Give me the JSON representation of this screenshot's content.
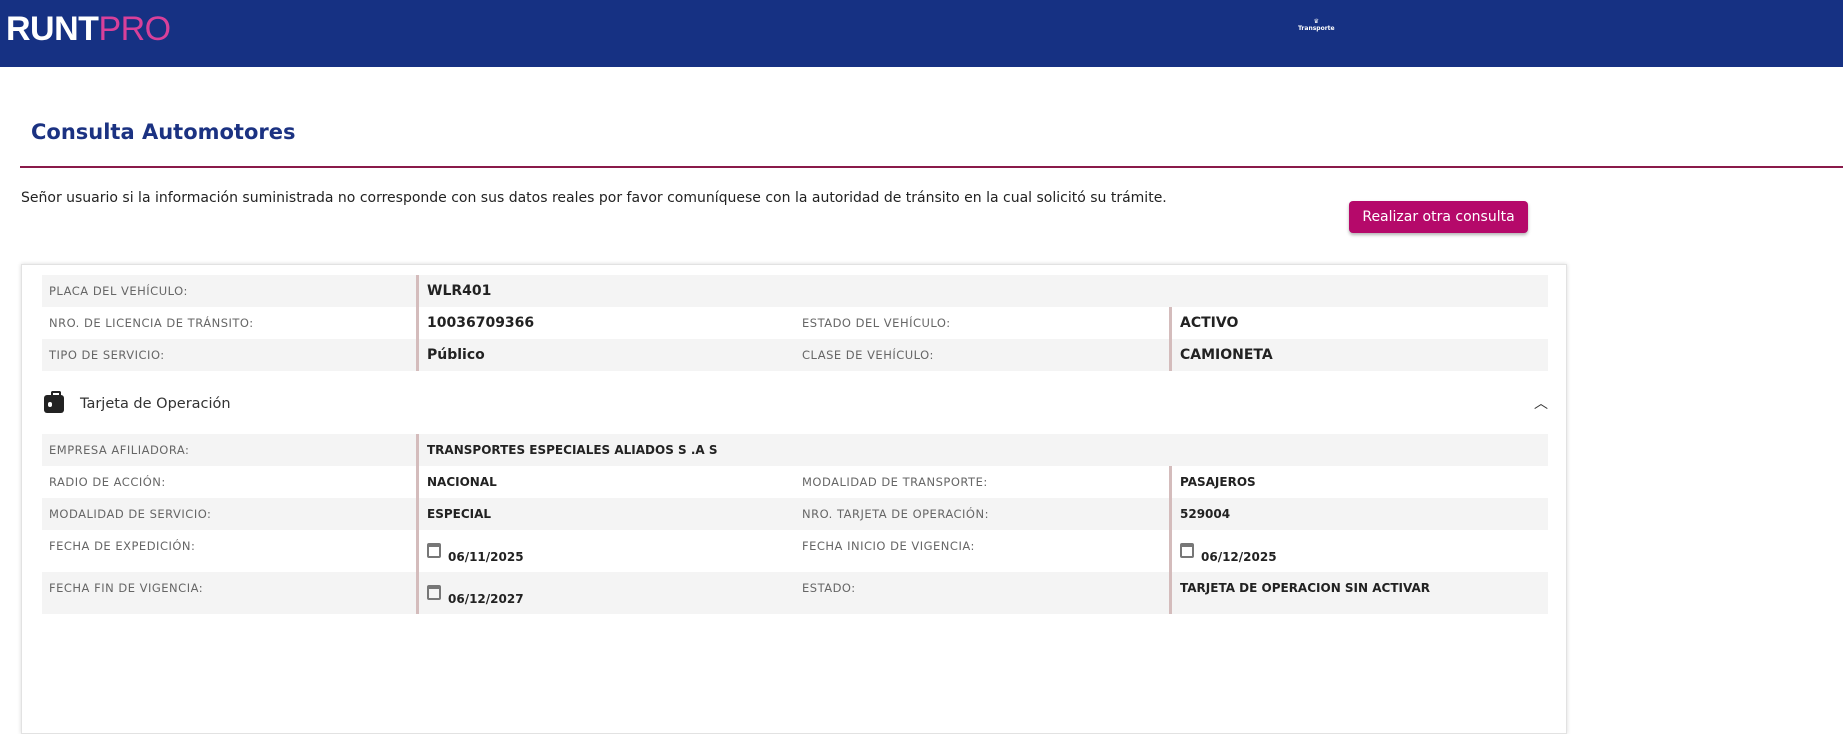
{
  "header": {
    "logo_main": "RUNT",
    "logo_accent": "PRO",
    "partner_logo": "Transporte"
  },
  "page": {
    "title": "Consulta Automotores",
    "notice": "Señor usuario si la información suministrada no corresponde con sus datos reales por favor comuníquese con la autoridad de tránsito en la cual solicitó su trámite.",
    "new_query_button": "Realizar otra consulta"
  },
  "vehicle": {
    "placa_label": "PLACA DEL VEHÍCULO:",
    "placa": "WLR401",
    "licencia_label": "NRO. DE LICENCIA DE TRÁNSITO:",
    "licencia": "10036709366",
    "estado_label": "ESTADO DEL VEHÍCULO:",
    "estado": "ACTIVO",
    "servicio_label": "TIPO DE SERVICIO:",
    "servicio": "Público",
    "clase_label": "CLASE DE VEHÍCULO:",
    "clase": "CAMIONETA"
  },
  "tarjeta": {
    "section_title": "Tarjeta de Operación",
    "section_icon": "id-badge-icon",
    "expanded": true,
    "empresa_label": "EMPRESA AFILIADORA:",
    "empresa": "TRANSPORTES ESPECIALES ALIADOS S .A S",
    "radio_label": "RADIO DE ACCIÓN:",
    "radio": "NACIONAL",
    "modalidad_transporte_label": "MODALIDAD DE TRANSPORTE:",
    "modalidad_transporte": "PASAJEROS",
    "modalidad_servicio_label": "MODALIDAD DE SERVICIO:",
    "modalidad_servicio": "ESPECIAL",
    "nro_tarjeta_label": "NRO. TARJETA DE OPERACIÓN:",
    "nro_tarjeta": "529004",
    "expedicion_label": "FECHA DE EXPEDICIÓN:",
    "expedicion": "06/11/2025",
    "inicio_label": "FECHA INICIO DE VIGENCIA:",
    "inicio": "06/12/2025",
    "fin_label": "FECHA FIN DE VIGENCIA:",
    "fin": "06/12/2027",
    "estado_label": "ESTADO:",
    "estado": "TARJETA DE OPERACION SIN ACTIVAR"
  }
}
